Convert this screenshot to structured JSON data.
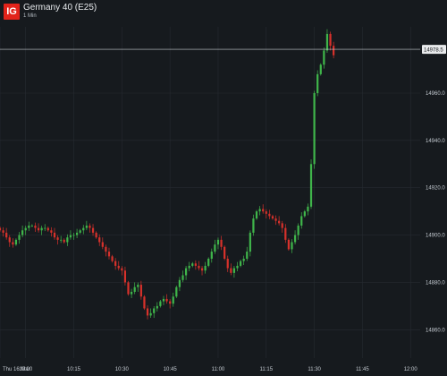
{
  "header": {
    "logo_text": "IG",
    "title": "Germany 40 (E25)",
    "interval": "1 Min"
  },
  "colors": {
    "background": "#161a1e",
    "grid": "#262b31",
    "up": "#3fb54a",
    "down": "#d6312b",
    "current_line": "#c8cdd2",
    "price_badge": "#e8eaec"
  },
  "chart_data": {
    "type": "candlestick",
    "title": "Germany 40 (E25)",
    "subtitle": "1 Min",
    "grid": true,
    "ylim": [
      14848,
      14988
    ],
    "y_ticks": [
      {
        "value": 14860,
        "label": "14860.0"
      },
      {
        "value": 14880,
        "label": "14880.0"
      },
      {
        "value": 14900,
        "label": "14900.0"
      },
      {
        "value": 14920,
        "label": "14920.0"
      },
      {
        "value": 14940,
        "label": "14940.0"
      },
      {
        "value": 14960,
        "label": "14960.0"
      }
    ],
    "x_ticks": [
      {
        "time": "09:52",
        "label": "Thu 16 Mar"
      },
      {
        "time": "10:00",
        "label": "10:00"
      },
      {
        "time": "10:15",
        "label": "10:15"
      },
      {
        "time": "10:30",
        "label": "10:30"
      },
      {
        "time": "10:45",
        "label": "10:45"
      },
      {
        "time": "11:00",
        "label": "11:00"
      },
      {
        "time": "11:15",
        "label": "11:15"
      },
      {
        "time": "11:30",
        "label": "11:30"
      },
      {
        "time": "11:45",
        "label": "11:45"
      },
      {
        "time": "12:00",
        "label": "12:00"
      }
    ],
    "xlim": [
      "09:52",
      "12:03"
    ],
    "current_price": 14978.5,
    "current_price_label": "14978.5",
    "closes": [
      14902,
      14901,
      14899,
      14897,
      14896,
      14898,
      14900,
      14902,
      14903,
      14904,
      14904,
      14903,
      14902,
      14903,
      14903,
      14902,
      14901,
      14899,
      14898,
      14898,
      14897,
      14899,
      14900,
      14900,
      14901,
      14902,
      14903,
      14904,
      14903,
      14901,
      14899,
      14897,
      14895,
      14893,
      14891,
      14889,
      14887,
      14886,
      14885,
      14880,
      14875,
      14876,
      14878,
      14879,
      14874,
      14869,
      14866,
      14867,
      14869,
      14870,
      14872,
      14873,
      14872,
      14871,
      14874,
      14878,
      14881,
      14883,
      14886,
      14887,
      14888,
      14887,
      14886,
      14885,
      14887,
      14890,
      14893,
      14896,
      14898,
      14895,
      14890,
      14886,
      14884,
      14886,
      14887,
      14889,
      14890,
      14893,
      14901,
      14907,
      14910,
      14911,
      14910,
      14909,
      14908,
      14907,
      14906,
      14905,
      14903,
      14898,
      14894,
      14897,
      14900,
      14904,
      14908,
      14910,
      14912,
      14930,
      14960,
      14968,
      14972,
      14978,
      14985,
      14980,
      14976
    ]
  }
}
